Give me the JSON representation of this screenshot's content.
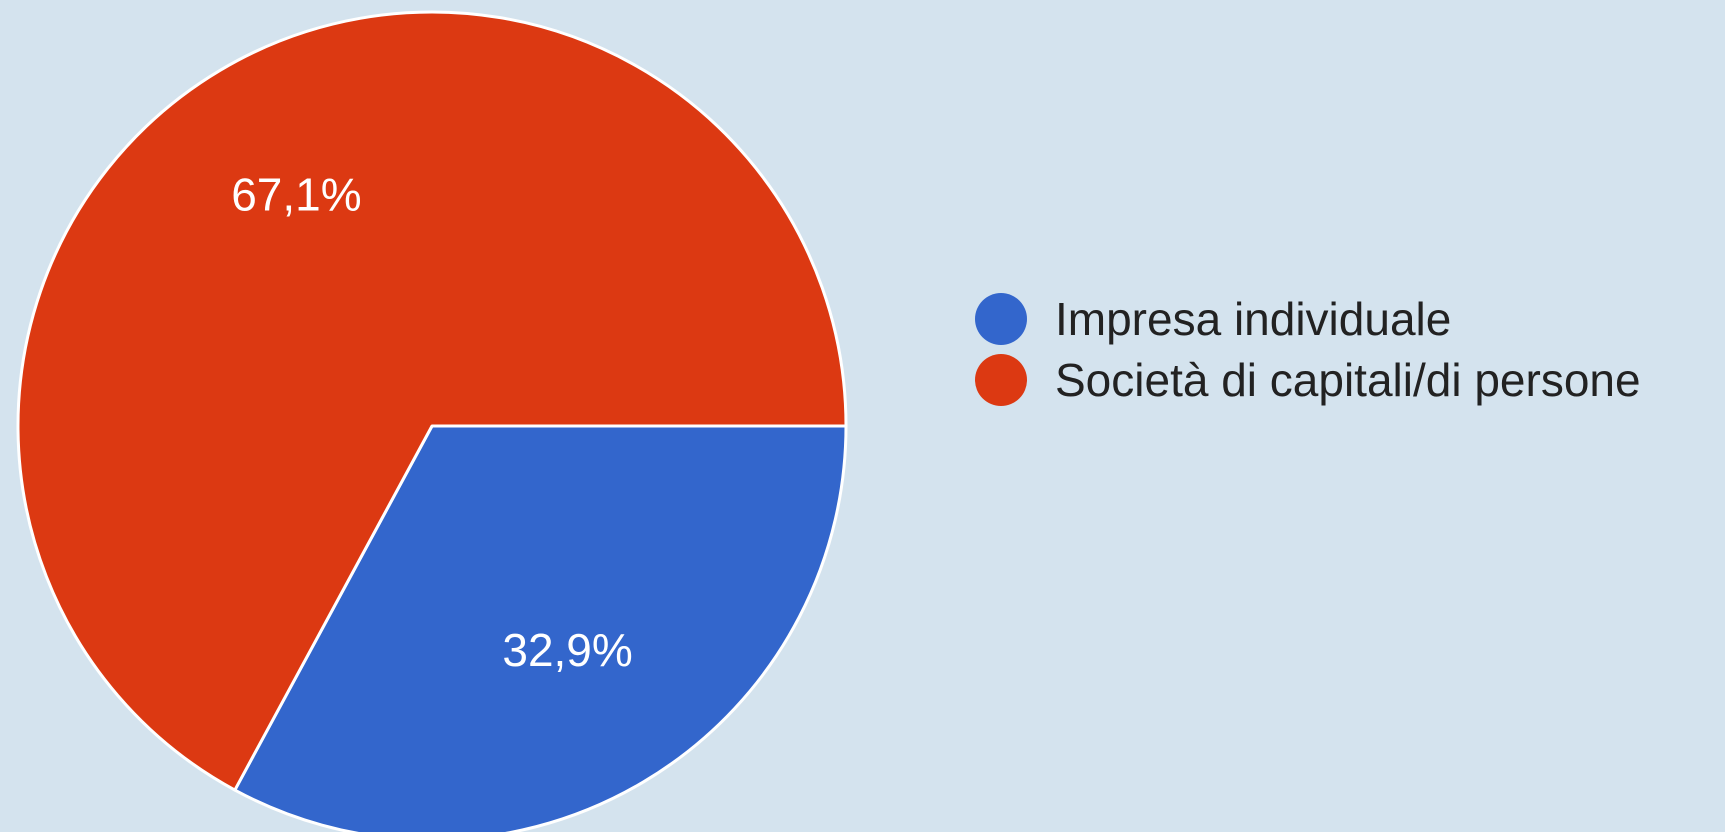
{
  "chart_data": {
    "type": "pie",
    "title": "",
    "slices": [
      {
        "label": "Impresa individuale",
        "value": 32.9,
        "value_label": "32,9%",
        "color": "#3366cc"
      },
      {
        "label": "Società di capitali/di persone",
        "value": 67.1,
        "value_label": "67,1%",
        "color": "#dc3912"
      }
    ],
    "start_angle_degrees": 90,
    "direction": "clockwise",
    "legend_position": "right"
  }
}
